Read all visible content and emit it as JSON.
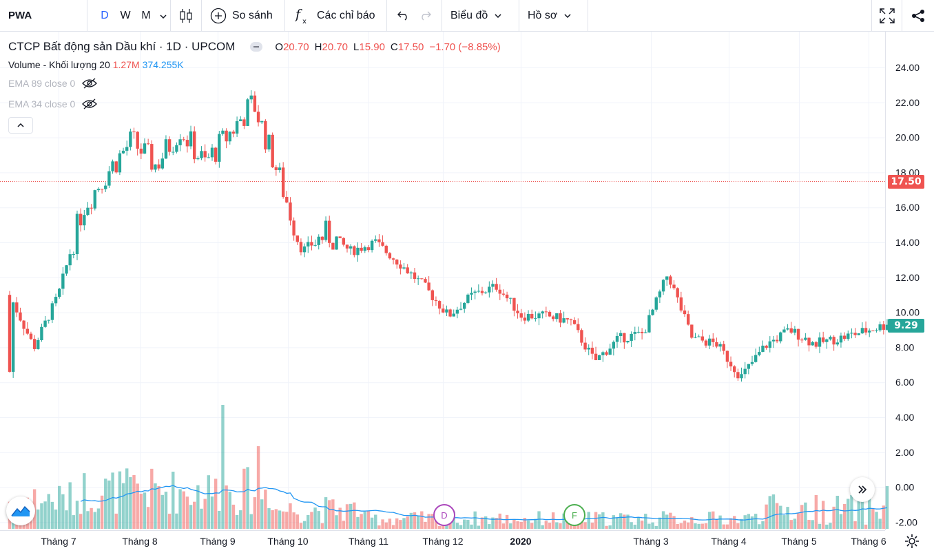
{
  "toolbar": {
    "symbol": "PWA",
    "intervals": [
      "D",
      "W",
      "M"
    ],
    "compare_label": "So sánh",
    "indicators_label": "Các chỉ báo",
    "chart_label": "Biểu đồ",
    "profile_label": "Hồ sơ"
  },
  "legend": {
    "title": "CTCP Bất động sản Dầu khí · 1D · UPCOM",
    "o_label": "O",
    "o": "20.70",
    "h_label": "H",
    "h": "20.70",
    "l_label": "L",
    "l": "15.90",
    "c_label": "C",
    "c": "17.50",
    "change": "−1.70 (−8.85%)",
    "volume_label": "Volume - Khối lượng 20",
    "volume_value": "1.27M",
    "volume_ma": "374.255K",
    "ema89": "EMA 89 close 0",
    "ema34": "EMA 34 close 0"
  },
  "price_axis": [
    "24.00",
    "22.00",
    "20.00",
    "18.00",
    "16.00",
    "14.00",
    "12.00",
    "10.00",
    "8.00",
    "6.00",
    "4.00",
    "2.00",
    "0.00",
    "-2.00"
  ],
  "price_tags": {
    "last_close_line": "17.50",
    "current": "9.29"
  },
  "time_axis": [
    "Tháng 7",
    "Tháng 8",
    "Tháng 9",
    "Tháng 10",
    "Tháng 11",
    "Tháng 12",
    "2020",
    "Tháng 3",
    "Tháng 4",
    "Tháng 5",
    "Tháng 6"
  ],
  "event_markers": [
    "D",
    "F"
  ],
  "colors": {
    "up": "#26a69a",
    "down": "#ef5350",
    "volume_ma": "#2196f3",
    "accent": "#2962ff"
  },
  "chart_data": {
    "type": "candlestick",
    "title": "CTCP Bất động sản Dầu khí · 1D · UPCOM",
    "ylim": [
      -2,
      25
    ],
    "series_points": [
      [
        "Jun",
        6.6,
        11.0
      ],
      [
        "Jun",
        7.6,
        8.0
      ],
      [
        "Jun",
        7.2,
        11.0
      ],
      [
        "Jul",
        12.0,
        16.0
      ],
      [
        "Jul",
        15.8,
        18.0
      ],
      [
        "Jul",
        18.5,
        19.8
      ],
      [
        "Aug",
        16.8,
        18.4
      ],
      [
        "Aug",
        17.0,
        20.5
      ],
      [
        "Aug",
        15.6,
        18.5
      ],
      [
        "Aug",
        17.5,
        20.2
      ],
      [
        "Sep",
        19.0,
        22.0
      ],
      [
        "Sep",
        22.2,
        18.0
      ],
      [
        "Sep",
        17.0,
        13.5
      ],
      [
        "Sep",
        13.0,
        14.5
      ],
      [
        "Oct",
        12.0,
        13.5
      ],
      [
        "Oct",
        12.2,
        14.0
      ],
      [
        "Oct",
        14.0,
        12.8
      ],
      [
        "Nov",
        12.8,
        11.5
      ],
      [
        "Nov",
        11.0,
        9.8
      ],
      [
        "Dec",
        9.8,
        11.0
      ],
      [
        "Dec",
        10.0,
        11.5
      ],
      [
        "Dec",
        10.5,
        9.8
      ],
      [
        "Jan",
        10.2,
        9.8
      ],
      [
        "Jan",
        9.8,
        9.5
      ],
      [
        "Feb",
        9.4,
        7.2
      ],
      [
        "Feb",
        7.4,
        8.5
      ],
      [
        "Feb",
        7.8,
        8.8
      ],
      [
        "Mar",
        9.0,
        12.2
      ],
      [
        "Mar",
        12.0,
        8.5
      ],
      [
        "Mar",
        8.5,
        8.2
      ],
      [
        "Apr",
        8.3,
        6.3
      ],
      [
        "Apr",
        6.8,
        8.1
      ],
      [
        "Apr",
        8.0,
        9.0
      ],
      [
        "May",
        8.5,
        8.2
      ],
      [
        "May",
        8.2,
        8.5
      ],
      [
        "Jun",
        8.5,
        8.9
      ],
      [
        "Jun",
        8.6,
        9.29
      ]
    ]
  }
}
